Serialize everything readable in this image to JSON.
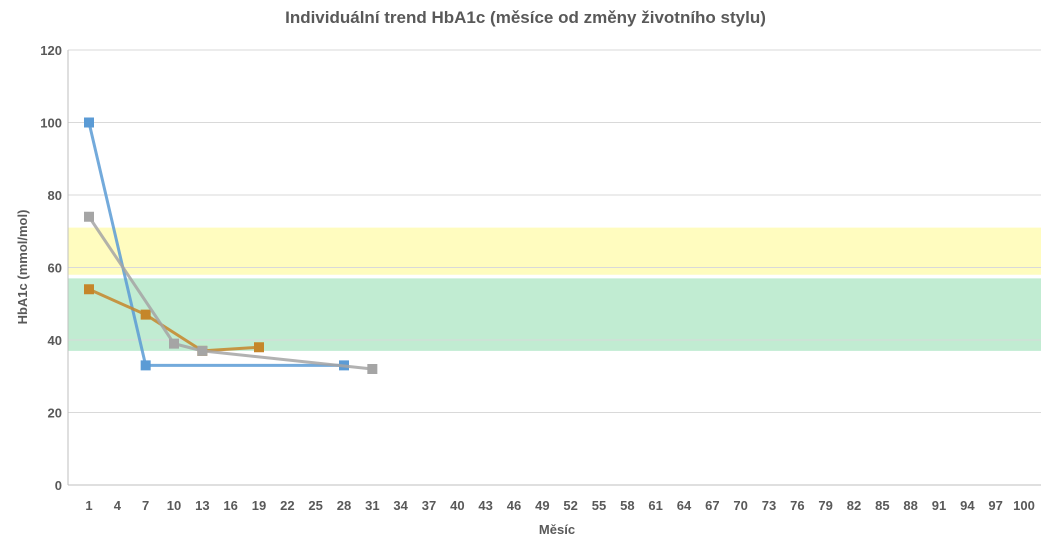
{
  "chart_data": {
    "type": "line",
    "title": "Individuální trend HbA1c (měsíce od změny životního stylu)",
    "xlabel": "Měsíc",
    "ylabel": "HbA1c (mmol/mol)",
    "ylim": [
      0,
      120
    ],
    "xlim": [
      1,
      100
    ],
    "x_ticks": [
      1,
      4,
      7,
      10,
      13,
      16,
      19,
      22,
      25,
      28,
      31,
      34,
      37,
      40,
      43,
      46,
      49,
      52,
      55,
      58,
      61,
      64,
      67,
      70,
      73,
      76,
      79,
      82,
      85,
      88,
      91,
      94,
      97,
      100
    ],
    "y_ticks": [
      0,
      20,
      40,
      60,
      80,
      100,
      120
    ],
    "grid": true,
    "bands": [
      {
        "y_from": 58,
        "y_to": 71,
        "color": "#fffcbf"
      },
      {
        "y_from": 37,
        "y_to": 57,
        "color": "#c1ecd2"
      }
    ],
    "series": [
      {
        "color": "#5b9bd5",
        "points": [
          [
            1,
            100
          ],
          [
            7,
            33
          ],
          [
            28,
            33
          ]
        ]
      },
      {
        "color": "#c5862a",
        "points": [
          [
            1,
            54
          ],
          [
            7,
            47
          ],
          [
            13,
            37
          ],
          [
            19,
            38
          ]
        ]
      },
      {
        "color": "#a5a5a5",
        "points": [
          [
            1,
            74
          ],
          [
            10,
            39
          ],
          [
            13,
            37
          ],
          [
            31,
            32
          ]
        ]
      }
    ]
  }
}
